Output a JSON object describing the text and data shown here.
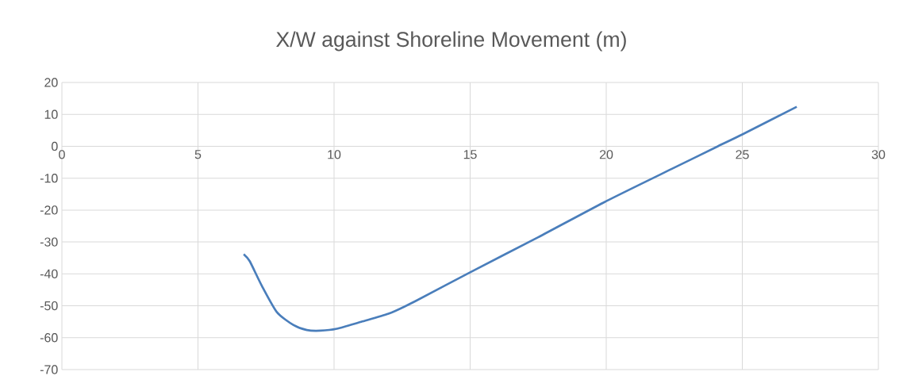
{
  "chart_data": {
    "type": "line",
    "title": "X/W against Shoreline Movement (m)",
    "x": [
      6.68,
      6.9,
      7.35,
      7.9,
      8.5,
      9.0,
      9.5,
      10.1,
      11,
      12,
      13,
      15,
      17.5,
      20,
      22.5,
      24.1,
      25,
      27
    ],
    "series": [
      {
        "color": "#4a7ebb",
        "values": [
          -33.8,
          -36,
          -43.8,
          -52,
          -56,
          -57.6,
          -57.8,
          -57.2,
          -55,
          -52.5,
          -48.5,
          -39.5,
          -28.5,
          -17.2,
          -6.7,
          0,
          3.7,
          12.4
        ]
      }
    ],
    "xlim": [
      0,
      30
    ],
    "ylim": [
      -70,
      20
    ],
    "xticks": [
      0,
      5,
      10,
      15,
      20,
      25,
      30
    ],
    "yticks": [
      -70,
      -60,
      -50,
      -40,
      -30,
      -20,
      -10,
      0,
      10,
      20
    ],
    "grid": true
  }
}
